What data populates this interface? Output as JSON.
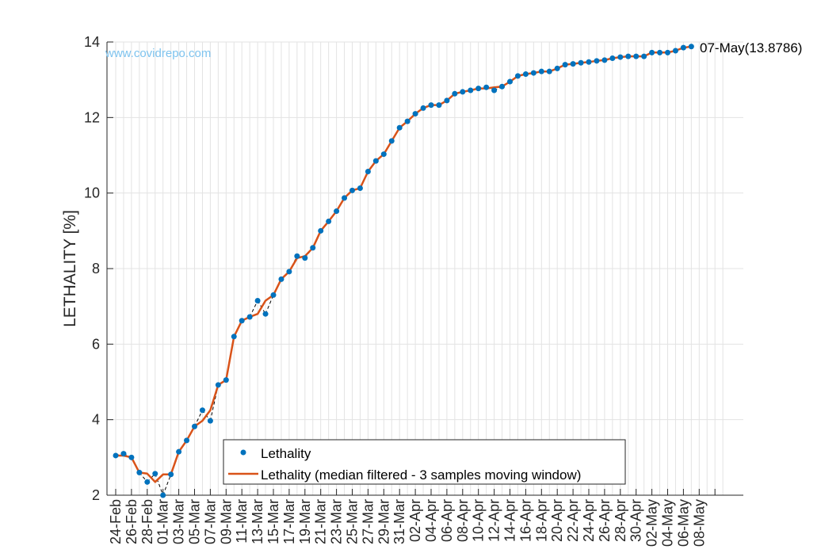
{
  "chart_data": {
    "type": "line",
    "watermark": "www.covidrepo.com",
    "ylabel": "LETHALITY [%]",
    "xlabel": "",
    "ylim": [
      2,
      14
    ],
    "yticks": [
      2,
      4,
      6,
      8,
      10,
      12,
      14
    ],
    "grid": true,
    "legend_position": "bottom-center",
    "start_date": "24-Feb",
    "xtick_labels": [
      "24-Feb",
      "26-Feb",
      "28-Feb",
      "01-Mar",
      "03-Mar",
      "05-Mar",
      "07-Mar",
      "09-Mar",
      "11-Mar",
      "13-Mar",
      "15-Mar",
      "17-Mar",
      "19-Mar",
      "21-Mar",
      "23-Mar",
      "25-Mar",
      "27-Mar",
      "29-Mar",
      "31-Mar",
      "02-Apr",
      "04-Apr",
      "06-Apr",
      "08-Apr",
      "10-Apr",
      "12-Apr",
      "14-Apr",
      "16-Apr",
      "18-Apr",
      "20-Apr",
      "22-Apr",
      "24-Apr",
      "26-Apr",
      "28-Apr",
      "30-Apr",
      "02-May",
      "04-May",
      "06-May",
      "08-May"
    ],
    "annotation": "07-May(13.8786)",
    "series": [
      {
        "name": "Lethality",
        "style": "markers",
        "color": "#0072bd",
        "values": [
          3.05,
          3.1,
          3.0,
          2.6,
          2.35,
          2.57,
          2.0,
          2.55,
          3.15,
          3.45,
          3.82,
          4.25,
          3.97,
          4.92,
          5.05,
          6.2,
          6.62,
          6.72,
          7.15,
          6.8,
          7.3,
          7.72,
          7.92,
          8.33,
          8.28,
          8.55,
          9.0,
          9.25,
          9.52,
          9.87,
          10.07,
          10.13,
          10.57,
          10.85,
          11.03,
          11.38,
          11.73,
          11.9,
          12.1,
          12.25,
          12.33,
          12.33,
          12.45,
          12.63,
          12.68,
          12.72,
          12.77,
          12.8,
          12.72,
          12.82,
          12.95,
          13.1,
          13.15,
          13.18,
          13.22,
          13.22,
          13.3,
          13.4,
          13.42,
          13.45,
          13.47,
          13.5,
          13.52,
          13.57,
          13.6,
          13.62,
          13.62,
          13.62,
          13.72,
          13.72,
          13.72,
          13.77,
          13.85,
          13.8786
        ]
      },
      {
        "name": "Lethality (median filtered - 3 samples moving window)",
        "style": "line",
        "color": "#d95319",
        "values": [
          3.05,
          3.05,
          3.0,
          2.6,
          2.57,
          2.35,
          2.55,
          2.55,
          3.15,
          3.45,
          3.82,
          3.97,
          4.25,
          4.92,
          5.05,
          6.2,
          6.62,
          6.72,
          6.8,
          7.15,
          7.3,
          7.72,
          7.92,
          8.28,
          8.33,
          8.55,
          9.0,
          9.25,
          9.52,
          9.87,
          10.07,
          10.13,
          10.57,
          10.85,
          11.03,
          11.38,
          11.73,
          11.9,
          12.1,
          12.25,
          12.33,
          12.33,
          12.45,
          12.63,
          12.68,
          12.72,
          12.77,
          12.77,
          12.8,
          12.82,
          12.95,
          13.1,
          13.15,
          13.18,
          13.22,
          13.22,
          13.3,
          13.4,
          13.42,
          13.45,
          13.47,
          13.5,
          13.52,
          13.57,
          13.6,
          13.62,
          13.62,
          13.62,
          13.72,
          13.72,
          13.72,
          13.77,
          13.85,
          13.8786
        ]
      }
    ]
  }
}
